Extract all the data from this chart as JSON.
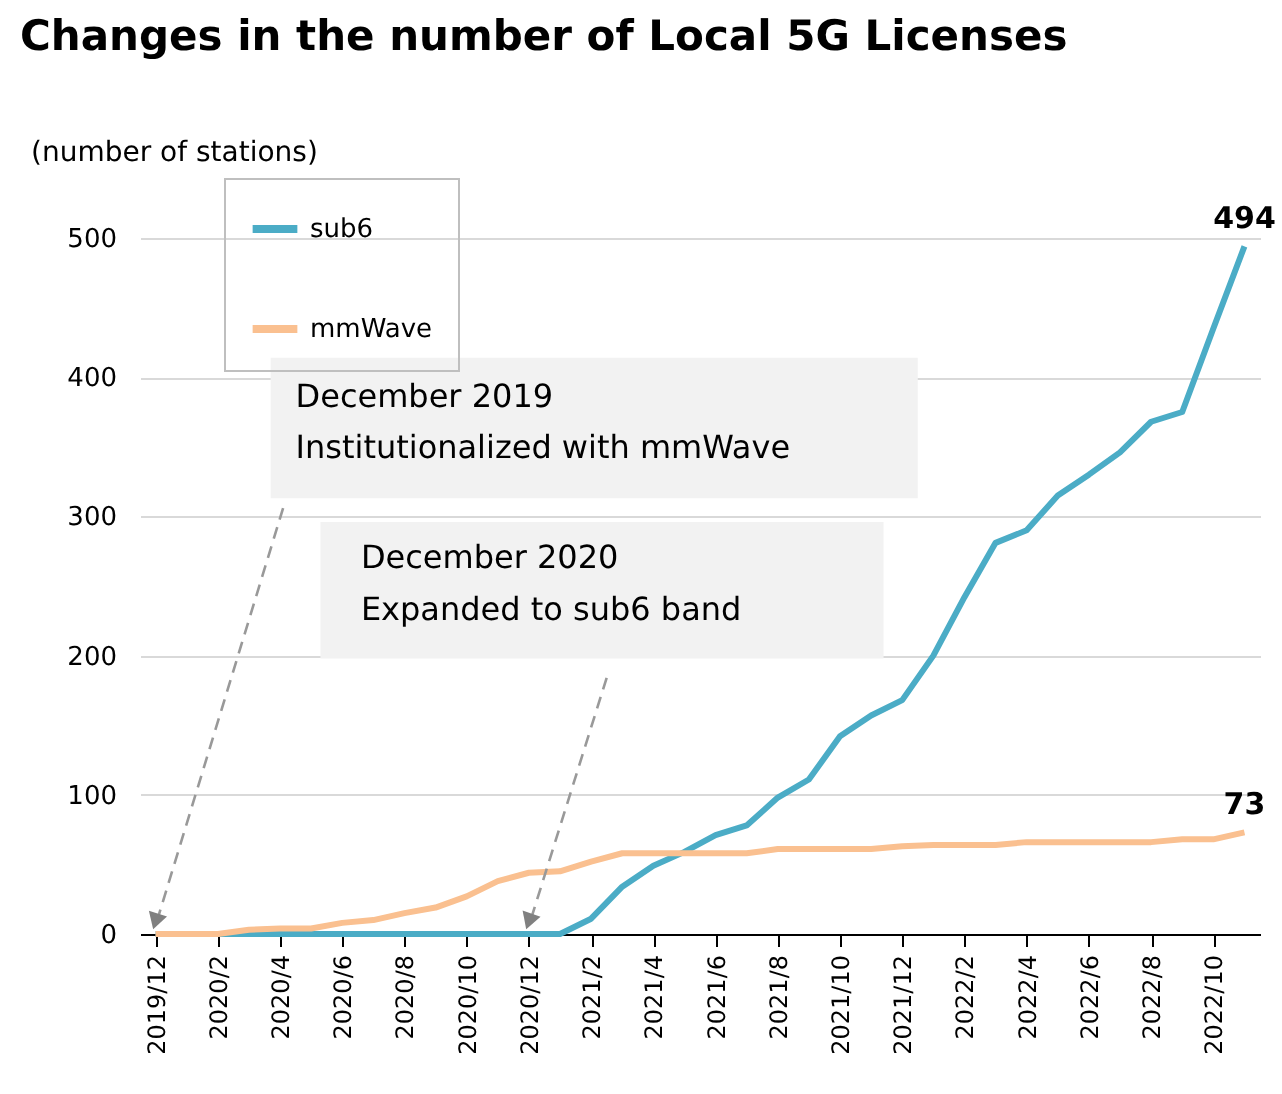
{
  "chart_data": {
    "type": "line",
    "title": "Changes in the number of Local 5G Licenses",
    "ylabel": "(number of stations)",
    "categories": [
      "2019/12",
      null,
      "2020/2",
      null,
      "2020/4",
      null,
      "2020/6",
      null,
      "2020/8",
      null,
      "2020/10",
      null,
      "2020/12",
      null,
      "2021/2",
      null,
      "2021/4",
      null,
      "2021/6",
      null,
      "2021/8",
      null,
      "2021/10",
      null,
      "2021/12",
      null,
      "2022/2",
      null,
      "2022/4",
      null,
      "2022/6",
      null,
      "2022/8",
      null,
      "2022/10",
      null
    ],
    "series": [
      {
        "name": "sub6",
        "color": "#4bacc6",
        "values": [
          0,
          0,
          0,
          0,
          0,
          0,
          0,
          0,
          0,
          0,
          0,
          0,
          0,
          0,
          11,
          34,
          49,
          59,
          71,
          78,
          98,
          111,
          142,
          157,
          168,
          200,
          242,
          281,
          290,
          315,
          330,
          346,
          368,
          375,
          435,
          494
        ],
        "value_labels": [
          null,
          null,
          null,
          null,
          null,
          null,
          null,
          null,
          null,
          null,
          null,
          null,
          null,
          null,
          null,
          null,
          null,
          null,
          null,
          null,
          null,
          null,
          null,
          null,
          null,
          null,
          null,
          null,
          null,
          null,
          null,
          null,
          null,
          null,
          null,
          "494"
        ]
      },
      {
        "name": "mmWave",
        "color": "#fac090",
        "values": [
          0,
          0,
          0,
          3,
          4,
          4,
          8,
          10,
          15,
          19,
          27,
          38,
          44,
          45,
          52,
          58,
          58,
          58,
          58,
          58,
          61,
          61,
          61,
          61,
          63,
          64,
          64,
          64,
          66,
          66,
          66,
          66,
          66,
          68,
          68,
          73
        ],
        "value_labels": [
          null,
          null,
          null,
          null,
          null,
          null,
          null,
          null,
          null,
          null,
          null,
          null,
          null,
          null,
          null,
          null,
          null,
          null,
          null,
          null,
          null,
          null,
          null,
          null,
          null,
          null,
          null,
          null,
          null,
          null,
          null,
          null,
          null,
          null,
          null,
          "73"
        ]
      }
    ],
    "ylim": [
      0,
      500
    ],
    "yticks": [
      0,
      100,
      200,
      300,
      400,
      500
    ],
    "grid": "y",
    "legend": "top left",
    "annotations": [
      "December 2019\nInstitutionalized with mmWave",
      "December 2020\nExpanded to sub6 band"
    ]
  }
}
